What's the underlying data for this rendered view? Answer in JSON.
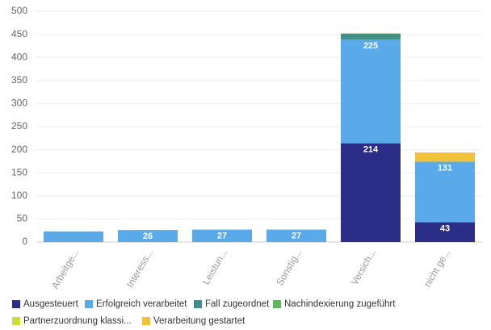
{
  "chart_data": {
    "type": "stacked_bar",
    "categories": [
      "Arbeitge...",
      "Interess...",
      "Leistun...",
      "Sonstig...",
      "Versich...",
      "nicht ge..."
    ],
    "series": [
      {
        "name": "Ausgesteuert",
        "color": "#2b2d86",
        "values": [
          null,
          null,
          null,
          null,
          214,
          43
        ]
      },
      {
        "name": "Erfolgreich verarbeitet",
        "color": "#5aaaea",
        "values": [
          23,
          26,
          27,
          27,
          225,
          131
        ]
      },
      {
        "name": "Fall zugeordnet",
        "color": "#3d8f87",
        "values": [
          null,
          null,
          null,
          null,
          12,
          null
        ]
      },
      {
        "name": "Nachindexierung zugeführt",
        "color": "#5cb85c",
        "values": [
          null,
          null,
          null,
          null,
          null,
          null
        ]
      },
      {
        "name": "Partnerzuordnung klassi...",
        "color": "#cddc39",
        "values": [
          null,
          null,
          null,
          null,
          2,
          null
        ]
      },
      {
        "name": "Verarbeitung gestartet",
        "color": "#f0c23a",
        "values": [
          null,
          null,
          null,
          null,
          null,
          20
        ]
      }
    ],
    "ylim": [
      0,
      500
    ],
    "yticks": [
      0,
      50,
      100,
      150,
      200,
      250,
      300,
      350,
      400,
      450,
      500
    ],
    "grid": true,
    "legend": "bottom"
  }
}
